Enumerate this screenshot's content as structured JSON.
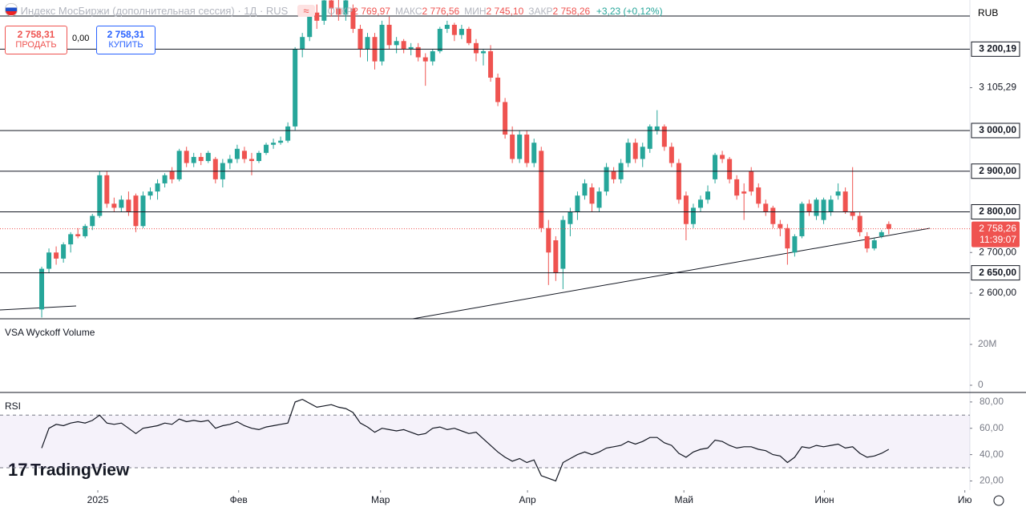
{
  "header": {
    "title": "Индекс МосБиржи (дополнительная сессия) · 1Д · RUS",
    "ohlc": [
      {
        "label": "ОТКР",
        "value": "2 769,97"
      },
      {
        "label": "МАКС",
        "value": "2 776,56"
      },
      {
        "label": "МИН",
        "value": "2 745,10"
      },
      {
        "label": "ЗАКР",
        "value": "2 758,26"
      }
    ],
    "change": "+3,23 (+0,12%)",
    "sell_price": "2 758,31",
    "sell": "ПРОДАТЬ",
    "spread": "0,00",
    "buy_price": "2 758,31",
    "buy": "КУПИТЬ",
    "currency": "RUB"
  },
  "chart_data": [
    {
      "type": "candlestick",
      "up_color": "#26a69a",
      "down_color": "#ef5350",
      "ylim": [
        2537,
        3321
      ],
      "xlim": [
        -5.76,
        128.2
      ],
      "yticks": [
        {
          "value": 3105.29,
          "label": "3 105,29"
        },
        {
          "value": 2700,
          "label": "2 700,00"
        },
        {
          "value": 2600,
          "label": "2 600,00"
        }
      ],
      "levels": [
        {
          "value": 3200.19,
          "label": "3 200,19"
        },
        {
          "value": 3000,
          "label": "3 000,00"
        },
        {
          "value": 2900,
          "label": "2 900,00"
        },
        {
          "value": 2800,
          "label": "2 800,00"
        },
        {
          "value": 2650,
          "label": "2 650,00"
        }
      ],
      "last_price": {
        "value": 2758.26,
        "label": "2 758,26"
      },
      "countdown": "11:39:07",
      "xticks": [
        {
          "value": 7.75,
          "label": "2025"
        },
        {
          "value": 27.2,
          "label": "Фев"
        },
        {
          "value": 46.8,
          "label": "Мар"
        },
        {
          "value": 67.1,
          "label": "Апр"
        },
        {
          "value": 88.7,
          "label": "Май"
        },
        {
          "value": 108.1,
          "label": "Июн"
        },
        {
          "value": 127.5,
          "label": "Ию"
        }
      ],
      "candles": [
        [
          2560,
          2665,
          2540,
          2660
        ],
        [
          2660,
          2710,
          2650,
          2700
        ],
        [
          2700,
          2715,
          2670,
          2685
        ],
        [
          2685,
          2725,
          2675,
          2720
        ],
        [
          2720,
          2750,
          2700,
          2745
        ],
        [
          2745,
          2760,
          2735,
          2740
        ],
        [
          2740,
          2770,
          2735,
          2765
        ],
        [
          2765,
          2795,
          2755,
          2790
        ],
        [
          2790,
          2900,
          2785,
          2890
        ],
        [
          2890,
          2900,
          2810,
          2820
        ],
        [
          2820,
          2835,
          2800,
          2810
        ],
        [
          2810,
          2840,
          2800,
          2830
        ],
        [
          2830,
          2850,
          2790,
          2800
        ],
        [
          2840,
          2845,
          2750,
          2765
        ],
        [
          2765,
          2850,
          2760,
          2840
        ],
        [
          2840,
          2860,
          2830,
          2850
        ],
        [
          2850,
          2880,
          2830,
          2870
        ],
        [
          2870,
          2895,
          2860,
          2890
        ],
        [
          2900,
          2910,
          2870,
          2880
        ],
        [
          2880,
          2955,
          2875,
          2950
        ],
        [
          2950,
          2960,
          2910,
          2920
        ],
        [
          2920,
          2945,
          2910,
          2935
        ],
        [
          2935,
          2945,
          2915,
          2925
        ],
        [
          2925,
          2950,
          2920,
          2945
        ],
        [
          2930,
          2935,
          2870,
          2880
        ],
        [
          2880,
          2930,
          2860,
          2920
        ],
        [
          2920,
          2940,
          2905,
          2930
        ],
        [
          2930,
          2965,
          2920,
          2955
        ],
        [
          2950,
          2960,
          2920,
          2930
        ],
        [
          2930,
          2945,
          2890,
          2925
        ],
        [
          2925,
          2950,
          2920,
          2945
        ],
        [
          2945,
          2970,
          2940,
          2965
        ],
        [
          2965,
          2980,
          2955,
          2970
        ],
        [
          2970,
          2985,
          2965,
          2975
        ],
        [
          2975,
          3020,
          2970,
          3010
        ],
        [
          3010,
          3205,
          3000,
          3200
        ],
        [
          3200,
          3240,
          3180,
          3230
        ],
        [
          3230,
          3300,
          3220,
          3290
        ],
        [
          3290,
          3310,
          3250,
          3270
        ],
        [
          3270,
          3330,
          3260,
          3320
        ],
        [
          3320,
          3330,
          3280,
          3300
        ],
        [
          3300,
          3330,
          3270,
          3285
        ],
        [
          3285,
          3330,
          3270,
          3320
        ],
        [
          3300,
          3310,
          3240,
          3250
        ],
        [
          3250,
          3260,
          3180,
          3200
        ],
        [
          3200,
          3240,
          3170,
          3230
        ],
        [
          3230,
          3240,
          3150,
          3170
        ],
        [
          3170,
          3270,
          3160,
          3260
        ],
        [
          3260,
          3280,
          3200,
          3210
        ],
        [
          3210,
          3230,
          3190,
          3220
        ],
        [
          3220,
          3225,
          3190,
          3200
        ],
        [
          3200,
          3215,
          3185,
          3205
        ],
        [
          3205,
          3215,
          3170,
          3180
        ],
        [
          3180,
          3190,
          3110,
          3170
        ],
        [
          3170,
          3200,
          3160,
          3195
        ],
        [
          3195,
          3255,
          3190,
          3250
        ],
        [
          3250,
          3270,
          3240,
          3260
        ],
        [
          3260,
          3265,
          3220,
          3235
        ],
        [
          3235,
          3260,
          3225,
          3250
        ],
        [
          3250,
          3255,
          3210,
          3215
        ],
        [
          3215,
          3225,
          3170,
          3190
        ],
        [
          3190,
          3200,
          3160,
          3195
        ],
        [
          3195,
          3210,
          3120,
          3130
        ],
        [
          3130,
          3140,
          3060,
          3070
        ],
        [
          3070,
          3080,
          2980,
          2990
        ],
        [
          2990,
          3010,
          2920,
          2930
        ],
        [
          2930,
          3000,
          2920,
          2990
        ],
        [
          2990,
          3000,
          2910,
          2920
        ],
        [
          2920,
          2980,
          2910,
          2970
        ],
        [
          2950,
          2960,
          2750,
          2760
        ],
        [
          2760,
          2780,
          2620,
          2700
        ],
        [
          2730,
          2740,
          2630,
          2650
        ],
        [
          2660,
          2790,
          2610,
          2780
        ],
        [
          2770,
          2810,
          2740,
          2800
        ],
        [
          2800,
          2850,
          2780,
          2840
        ],
        [
          2840,
          2880,
          2830,
          2870
        ],
        [
          2860,
          2870,
          2800,
          2820
        ],
        [
          2810,
          2860,
          2800,
          2850
        ],
        [
          2850,
          2920,
          2840,
          2910
        ],
        [
          2900,
          2910,
          2870,
          2880
        ],
        [
          2880,
          2930,
          2870,
          2920
        ],
        [
          2920,
          2980,
          2910,
          2970
        ],
        [
          2970,
          2980,
          2920,
          2930
        ],
        [
          2930,
          2970,
          2910,
          2960
        ],
        [
          2955,
          3015,
          2945,
          3010
        ],
        [
          3000,
          3050,
          2990,
          3010
        ],
        [
          3010,
          3015,
          2950,
          2960
        ],
        [
          2960,
          2970,
          2910,
          2920
        ],
        [
          2920,
          2930,
          2820,
          2830
        ],
        [
          2840,
          2850,
          2730,
          2770
        ],
        [
          2770,
          2820,
          2760,
          2810
        ],
        [
          2810,
          2840,
          2800,
          2830
        ],
        [
          2830,
          2865,
          2820,
          2850
        ],
        [
          2880,
          2945,
          2870,
          2940
        ],
        [
          2940,
          2950,
          2920,
          2930
        ],
        [
          2930,
          2935,
          2870,
          2880
        ],
        [
          2880,
          2890,
          2830,
          2840
        ],
        [
          2850,
          2870,
          2780,
          2845
        ],
        [
          2900,
          2910,
          2840,
          2850
        ],
        [
          2860,
          2870,
          2810,
          2820
        ],
        [
          2820,
          2830,
          2790,
          2800
        ],
        [
          2810,
          2815,
          2760,
          2770
        ],
        [
          2770,
          2780,
          2740,
          2760
        ],
        [
          2760,
          2770,
          2670,
          2710
        ],
        [
          2700,
          2745,
          2690,
          2740
        ],
        [
          2740,
          2825,
          2735,
          2820
        ],
        [
          2820,
          2830,
          2790,
          2800
        ],
        [
          2790,
          2835,
          2780,
          2830
        ],
        [
          2780,
          2835,
          2770,
          2830
        ],
        [
          2800,
          2840,
          2790,
          2830
        ],
        [
          2840,
          2870,
          2830,
          2850
        ],
        [
          2850,
          2860,
          2795,
          2800
        ],
        [
          2800,
          2910,
          2780,
          2790
        ],
        [
          2790,
          2800,
          2740,
          2750
        ],
        [
          2740,
          2750,
          2700,
          2710
        ],
        [
          2710,
          2735,
          2705,
          2730
        ],
        [
          2740,
          2755,
          2735,
          2750
        ],
        [
          2769.97,
          2776.56,
          2745.1,
          2758.26
        ]
      ]
    },
    {
      "type": "volume",
      "title": "VSA Wyckoff Volume",
      "ylim": [
        -3530000,
        31760000
      ],
      "yticks": [
        {
          "value": 20000000,
          "label": "20M"
        },
        0
      ]
    },
    {
      "type": "line",
      "title": "RSI",
      "color": "#131722",
      "band": [
        30,
        70
      ],
      "band_color": "#7e57c2",
      "ylim": [
        13,
        86
      ],
      "yticks": [
        {
          "value": 80,
          "label": "80,00"
        },
        {
          "value": 60,
          "label": "60,00"
        },
        {
          "value": 40,
          "label": "40,00"
        },
        {
          "value": 20,
          "label": "20,00"
        }
      ],
      "values": [
        45,
        60,
        63,
        62,
        64,
        65,
        64,
        66,
        70,
        64,
        63,
        64,
        60,
        56,
        60,
        61,
        62,
        64,
        63,
        67,
        65,
        66,
        65,
        66,
        60,
        62,
        63,
        65,
        62,
        60,
        59,
        61,
        62,
        63,
        64,
        80,
        82,
        79,
        76,
        77,
        78,
        76,
        75,
        72,
        64,
        61,
        57,
        60,
        59,
        58,
        59,
        57,
        55,
        56,
        60,
        61,
        59,
        60,
        58,
        56,
        57,
        52,
        47,
        42,
        38,
        35,
        37,
        34,
        36,
        24,
        22,
        20,
        34,
        37,
        40,
        42,
        40,
        42,
        45,
        46,
        47,
        50,
        48,
        50,
        53,
        53,
        49,
        47,
        41,
        38,
        42,
        44,
        45,
        51,
        50,
        47,
        45,
        46,
        46,
        44,
        43,
        40,
        39,
        34,
        38,
        46,
        45,
        47,
        46,
        47,
        48,
        45,
        46,
        41,
        38,
        39,
        41,
        44
      ]
    }
  ],
  "brand": "TradingView"
}
